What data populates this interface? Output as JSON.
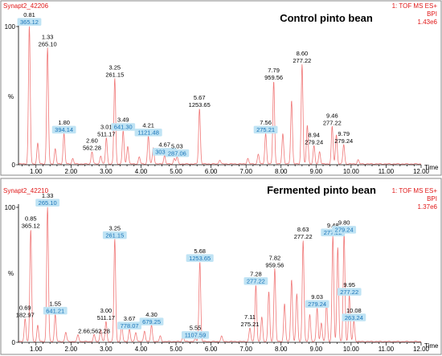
{
  "colors": {
    "trace": "#f07878",
    "header_red": "#e01818",
    "highlight_bg": "#bfe3f4",
    "highlight_text": "#1a74b8"
  },
  "chart_data": [
    {
      "type": "line",
      "sample_id": "Synapt2_42206",
      "title": "Control pinto bean",
      "mode": "1: TOF MS ES+",
      "trace_type": "BPI",
      "intensity": "1.43e6",
      "xlabel": "Time",
      "ylabel": "%",
      "xlim": [
        0.5,
        12.0
      ],
      "ylim": [
        0,
        100
      ],
      "xticks": [
        "1.00",
        "2.00",
        "3.00",
        "4.00",
        "5.00",
        "6.00",
        "7.00",
        "8.00",
        "9.00",
        "10.00",
        "11.00",
        "12.00"
      ],
      "yticks": [
        "0",
        "100"
      ],
      "peaks": [
        {
          "rt": "0.81",
          "mz": "365.12",
          "x": 0.81,
          "y": 100,
          "mz_highlight": true
        },
        {
          "rt": "1.33",
          "mz": "265.10",
          "x": 1.33,
          "y": 84,
          "mz_highlight": false
        },
        {
          "rt": "1.80",
          "mz": "394.14",
          "x": 1.8,
          "y": 22,
          "mz_highlight": true
        },
        {
          "rt": "2.60",
          "mz": "562.28",
          "x": 2.6,
          "y": 9,
          "mz_highlight": false
        },
        {
          "rt": "3.01",
          "mz": "511.17",
          "x": 3.01,
          "y": 19,
          "mz_highlight": false
        },
        {
          "rt": "3.25",
          "mz": "261.15",
          "x": 3.25,
          "y": 62,
          "mz_highlight": false
        },
        {
          "rt": "3.49",
          "mz": "641.30",
          "x": 3.49,
          "y": 24,
          "mz_highlight": true
        },
        {
          "rt": "4.21",
          "mz": "1121.48",
          "x": 4.21,
          "y": 20,
          "mz_highlight": true
        },
        {
          "rt": "4.67",
          "mz": "303.06",
          "x": 4.67,
          "y": 6,
          "mz_highlight": true
        },
        {
          "rt": "5.03",
          "mz": "287.06",
          "x": 5.03,
          "y": 5,
          "mz_highlight": true
        },
        {
          "rt": "5.67",
          "mz": "1253.65",
          "x": 5.67,
          "y": 40,
          "mz_highlight": false
        },
        {
          "rt": "7.56",
          "mz": "275.21",
          "x": 7.56,
          "y": 22,
          "mz_highlight": true
        },
        {
          "rt": "7.79",
          "mz": "959.56",
          "x": 7.79,
          "y": 60,
          "mz_highlight": false
        },
        {
          "rt": "8.60",
          "mz": "277.22",
          "x": 8.6,
          "y": 72,
          "mz_highlight": false
        },
        {
          "rt": "8.94",
          "mz": "279.24",
          "x": 8.94,
          "y": 13,
          "mz_highlight": false
        },
        {
          "rt": "9.46",
          "mz": "277.22",
          "x": 9.46,
          "y": 27,
          "mz_highlight": false
        },
        {
          "rt": "9.79",
          "mz": "279.24",
          "x": 9.79,
          "y": 14,
          "mz_highlight": false
        }
      ],
      "minor_peaks": [
        [
          1.05,
          15
        ],
        [
          1.55,
          11
        ],
        [
          2.05,
          4
        ],
        [
          2.85,
          6
        ],
        [
          3.62,
          13
        ],
        [
          3.95,
          5
        ],
        [
          4.35,
          12
        ],
        [
          4.95,
          4
        ],
        [
          6.25,
          3
        ],
        [
          7.05,
          4
        ],
        [
          7.35,
          7
        ],
        [
          8.05,
          22
        ],
        [
          8.3,
          46
        ],
        [
          8.75,
          28
        ],
        [
          9.1,
          9
        ],
        [
          9.58,
          21
        ],
        [
          10.2,
          3
        ]
      ]
    },
    {
      "type": "line",
      "sample_id": "Synapt2_42210",
      "title": "Fermented pinto bean",
      "mode": "1: TOF MS ES+",
      "trace_type": "BPI",
      "intensity": "1.37e6",
      "xlabel": "Time",
      "ylabel": "%",
      "xlim": [
        0.5,
        12.0
      ],
      "ylim": [
        0,
        100
      ],
      "xticks": [
        "1.00",
        "2.00",
        "3.00",
        "4.00",
        "5.00",
        "6.00",
        "7.00",
        "8.00",
        "9.00",
        "10.00",
        "11.00",
        "12.00"
      ],
      "yticks": [
        "0",
        "100"
      ],
      "peaks": [
        {
          "rt": "0.69",
          "mz": "182.97",
          "x": 0.69,
          "y": 17,
          "mz_highlight": false
        },
        {
          "rt": "0.85",
          "mz": "365.12",
          "x": 0.85,
          "y": 83,
          "mz_highlight": false
        },
        {
          "rt": "1.33",
          "mz": "265.10",
          "x": 1.33,
          "y": 100,
          "mz_highlight": true
        },
        {
          "rt": "1.55",
          "mz": "641.21",
          "x": 1.55,
          "y": 20,
          "mz_highlight": true
        },
        {
          "rt": "2.66",
          "mz": "562.28",
          "x": 2.66,
          "y": 5,
          "mz_highlight": false,
          "label": "2.66;562.28"
        },
        {
          "rt": "3.00",
          "mz": "511.17",
          "x": 3.0,
          "y": 15,
          "mz_highlight": false
        },
        {
          "rt": "3.25",
          "mz": "261.15",
          "x": 3.25,
          "y": 76,
          "mz_highlight": true
        },
        {
          "rt": "3.67",
          "mz": "778.07",
          "x": 3.67,
          "y": 9,
          "mz_highlight": true
        },
        {
          "rt": "4.30",
          "mz": "679.25",
          "x": 4.3,
          "y": 12,
          "mz_highlight": true
        },
        {
          "rt": "5.55",
          "mz": "1107.59",
          "x": 5.55,
          "y": 2,
          "mz_highlight": true
        },
        {
          "rt": "5.68",
          "mz": "1253.65",
          "x": 5.68,
          "y": 59,
          "mz_highlight": true
        },
        {
          "rt": "7.11",
          "mz": "275.21",
          "x": 7.11,
          "y": 10,
          "mz_highlight": false
        },
        {
          "rt": "7.28",
          "mz": "277.22",
          "x": 7.28,
          "y": 42,
          "mz_highlight": true
        },
        {
          "rt": "7.82",
          "mz": "959.56",
          "x": 7.82,
          "y": 54,
          "mz_highlight": false
        },
        {
          "rt": "8.63",
          "mz": "277.22",
          "x": 8.63,
          "y": 75,
          "mz_highlight": false
        },
        {
          "rt": "9.03",
          "mz": "279.24",
          "x": 9.03,
          "y": 25,
          "mz_highlight": true
        },
        {
          "rt": "9.48",
          "mz": "277.22",
          "x": 9.48,
          "y": 78,
          "mz_highlight": true
        },
        {
          "rt": "9.80",
          "mz": "279.24",
          "x": 9.8,
          "y": 80,
          "mz_highlight": true
        },
        {
          "rt": "9.95",
          "mz": "277.22",
          "x": 9.95,
          "y": 34,
          "mz_highlight": true
        },
        {
          "rt": "10.08",
          "mz": "263.24",
          "x": 10.08,
          "y": 15,
          "mz_highlight": true
        }
      ],
      "minor_peaks": [
        [
          1.05,
          12
        ],
        [
          1.85,
          7
        ],
        [
          2.2,
          5
        ],
        [
          2.85,
          9
        ],
        [
          3.45,
          12
        ],
        [
          3.85,
          7
        ],
        [
          4.1,
          8
        ],
        [
          4.55,
          4
        ],
        [
          5.2,
          4
        ],
        [
          6.3,
          4
        ],
        [
          7.45,
          18
        ],
        [
          7.65,
          37
        ],
        [
          8.1,
          28
        ],
        [
          8.3,
          46
        ],
        [
          8.45,
          35
        ],
        [
          8.82,
          20
        ],
        [
          9.15,
          14
        ],
        [
          9.3,
          29
        ],
        [
          9.62,
          70
        ]
      ]
    }
  ]
}
